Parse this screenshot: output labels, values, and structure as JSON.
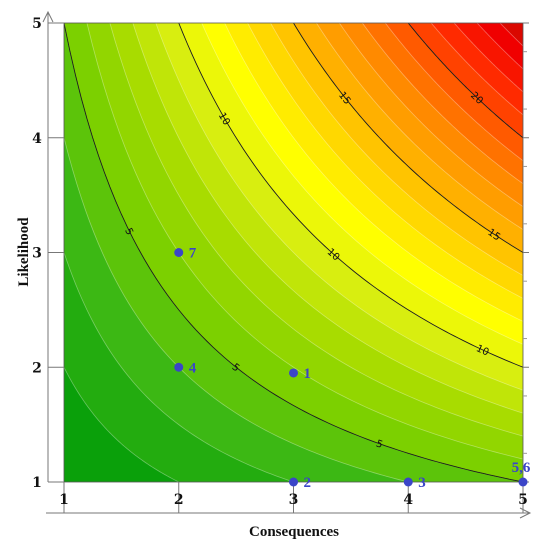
{
  "chart_data": {
    "type": "heatmap",
    "subtype": "filled-contour risk matrix",
    "function": "risk = consequences * likelihood",
    "xlabel": "Consequences",
    "ylabel": "Likelihood",
    "xlim": [
      1,
      5
    ],
    "ylim": [
      1,
      5
    ],
    "x_ticks": [
      "1",
      "2",
      "3",
      "4",
      "5"
    ],
    "y_ticks": [
      "1",
      "2",
      "3",
      "4",
      "5"
    ],
    "fill_levels": [
      1,
      2,
      3,
      4,
      5,
      6,
      7,
      8,
      9,
      10,
      11,
      12,
      13,
      14,
      15,
      16,
      17,
      18,
      19,
      20,
      21,
      22,
      23,
      24,
      25
    ],
    "color_ramp": [
      "#0aa00a",
      "#3cb814",
      "#7cd000",
      "#a8dc00",
      "#d8ee10",
      "#ffff00",
      "#ffd800",
      "#ffb000",
      "#ff8a00",
      "#ff5a00",
      "#ff2a00",
      "#f00000",
      "#c41000"
    ],
    "contour_lines": [
      {
        "level": 5,
        "labels": [
          "5",
          "5",
          "5"
        ],
        "label_x": [
          1.57,
          2.5,
          3.75
        ]
      },
      {
        "level": 10,
        "labels": [
          "10",
          "10",
          "10"
        ],
        "label_x": [
          2.4,
          3.35,
          4.65
        ]
      },
      {
        "level": 15,
        "labels": [
          "15",
          "15"
        ],
        "label_x": [
          3.45,
          4.75
        ]
      },
      {
        "level": 20,
        "labels": [
          "20"
        ],
        "label_x": [
          4.6
        ]
      }
    ],
    "points": [
      {
        "label": "1",
        "x": 3.0,
        "y": 1.95
      },
      {
        "label": "2",
        "x": 3.0,
        "y": 1.0
      },
      {
        "label": "3",
        "x": 4.0,
        "y": 1.0
      },
      {
        "label": "4",
        "x": 2.0,
        "y": 2.0
      },
      {
        "label": "5,6",
        "x": 5.0,
        "y": 1.0
      },
      {
        "label": "7",
        "x": 2.0,
        "y": 3.0
      }
    ],
    "grid": false,
    "legend": "none"
  }
}
